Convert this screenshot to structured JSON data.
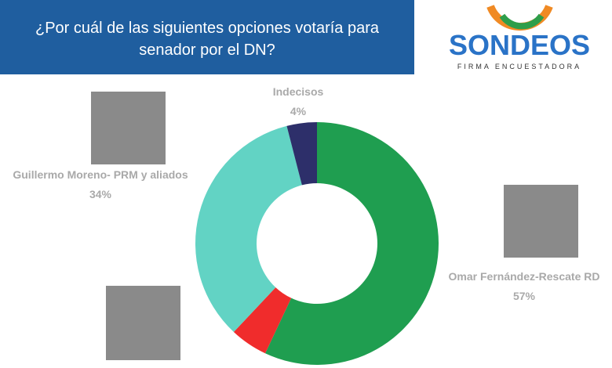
{
  "chart_data": {
    "type": "pie",
    "donut": true,
    "title": "¿Por cuál de las siguientes opciones votaría para senador por el DN?",
    "categories": [
      "Omar Fernández-Rescate RD",
      null,
      "Guillermo Moreno- PRM y aliados",
      "Indecisos"
    ],
    "values": [
      57,
      5,
      34,
      4
    ],
    "value_labels": [
      "57%",
      null,
      "34%",
      "4%"
    ],
    "colors": [
      "#1f9e50",
      "#f02c2c",
      "#62d3c4",
      "#2d2f6a"
    ]
  },
  "logo": {
    "name": "SONDEOS",
    "tagline": "FIRMA ENCUESTADORA"
  }
}
